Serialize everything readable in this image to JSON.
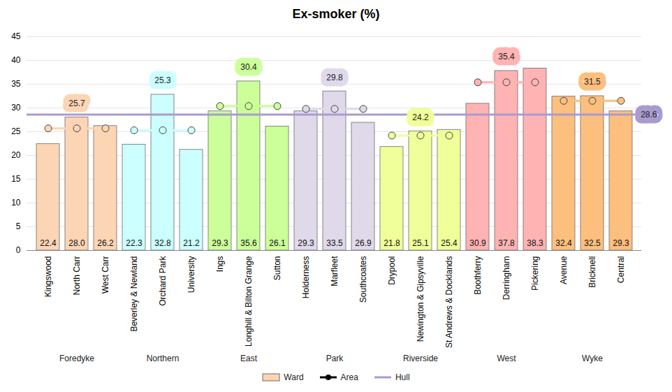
{
  "chart_data": {
    "type": "bar",
    "title": "Ex-smoker (%)",
    "groups": [
      {
        "name": "Foredyke",
        "color": "#fcd5b5",
        "categories": [
          "Kingswood",
          "North Carr",
          "West Carr"
        ],
        "values": [
          22.4,
          28.0,
          26.2
        ],
        "area_value": 25.7
      },
      {
        "name": "Northern",
        "color": "#ccffff",
        "categories": [
          "Beverley & Newland",
          "Orchard Park",
          "University"
        ],
        "values": [
          22.3,
          32.8,
          21.2
        ],
        "area_value": 25.3
      },
      {
        "name": "East",
        "color": "#ccff99",
        "categories": [
          "Ings",
          "Longhill & Bilton Grange",
          "Sutton"
        ],
        "values": [
          29.3,
          35.6,
          26.1
        ],
        "area_value": 30.4
      },
      {
        "name": "Park",
        "color": "#e0d9ea",
        "categories": [
          "Holderness",
          "Marfleet",
          "Southcoates"
        ],
        "values": [
          29.3,
          33.5,
          26.9
        ],
        "area_value": 29.8
      },
      {
        "name": "Riverside",
        "color": "#f0ff99",
        "categories": [
          "Drypool",
          "Newington & Gipsyville",
          "St Andrews & Docklands"
        ],
        "values": [
          21.8,
          25.1,
          25.4
        ],
        "area_value": 24.2
      },
      {
        "name": "West",
        "color": "#ffb3b3",
        "categories": [
          "Boothferry",
          "Derringham",
          "Pickering"
        ],
        "values": [
          30.9,
          37.8,
          38.3
        ],
        "area_value": 35.4
      },
      {
        "name": "Wyke",
        "color": "#fcbf7e",
        "categories": [
          "Avenue",
          "Bricknell",
          "Central"
        ],
        "values": [
          32.4,
          32.5,
          29.3
        ],
        "area_value": 31.5
      }
    ],
    "series": [
      {
        "name": "Ward",
        "type": "bar",
        "color": "#fcd5b5"
      },
      {
        "name": "Area",
        "type": "line",
        "color": "#000000",
        "marker": "circle"
      },
      {
        "name": "Hull",
        "type": "line",
        "color": "#a99bd0",
        "value": 28.6
      }
    ],
    "ylim": [
      0,
      45
    ],
    "yticks": [
      0,
      5,
      10,
      15,
      20,
      25,
      30,
      35,
      40,
      45
    ],
    "grid": true,
    "data_labels": true
  }
}
